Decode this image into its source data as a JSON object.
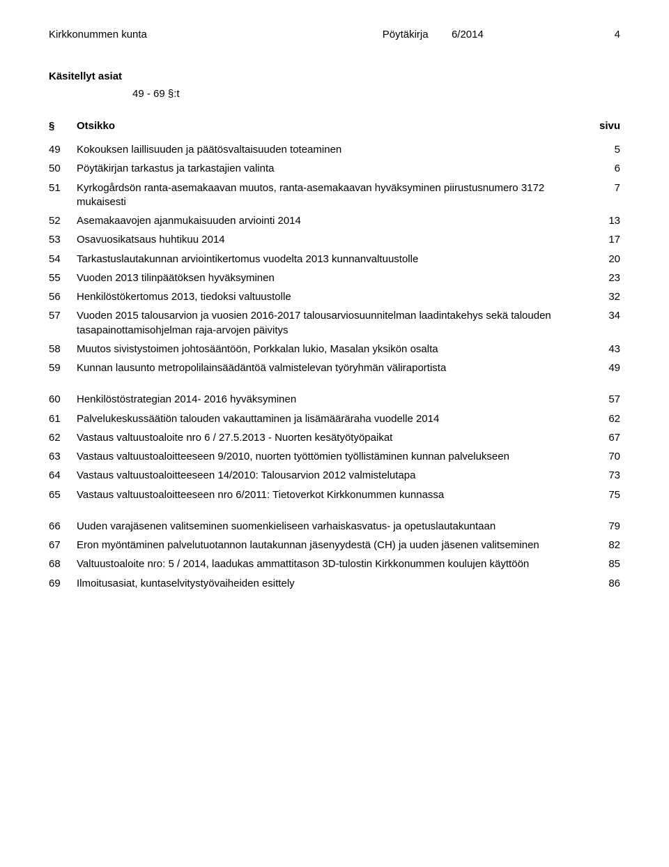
{
  "header": {
    "organization": "Kirkkonummen kunta",
    "document_type": "Pöytäkirja",
    "document_number": "6/2014",
    "page_number": "4"
  },
  "section_title": "Käsitellyt asiat",
  "range": "49 - 69 §:t",
  "columns": {
    "symbol": "§",
    "title": "Otsikko",
    "page": "sivu"
  },
  "groups": [
    {
      "rows": [
        {
          "num": "49",
          "title": "Kokouksen laillisuuden ja päätösvaltaisuuden toteaminen",
          "page": "5"
        },
        {
          "num": "50",
          "title": "Pöytäkirjan tarkastus ja tarkastajien valinta",
          "page": "6"
        },
        {
          "num": "51",
          "title": "Kyrkogårdsön ranta-asemakaavan muutos, ranta-asemakaavan hyväksyminen piirustusnumero 3172 mukaisesti",
          "page": "7"
        },
        {
          "num": "52",
          "title": "Asemakaavojen ajanmukaisuuden arviointi 2014",
          "page": "13"
        },
        {
          "num": "53",
          "title": "Osavuosikatsaus huhtikuu 2014",
          "page": "17"
        },
        {
          "num": "54",
          "title": "Tarkastuslautakunnan arviointikertomus vuodelta 2013 kunnanvaltuustolle",
          "page": "20"
        },
        {
          "num": "55",
          "title": "Vuoden 2013 tilinpäätöksen hyväksyminen",
          "page": "23"
        },
        {
          "num": "56",
          "title": "Henkilöstökertomus 2013, tiedoksi valtuustolle",
          "page": "32"
        },
        {
          "num": "57",
          "title": "Vuoden 2015 talousarvion ja vuosien 2016-2017 talousarviosuunnitelman laadintakehys sekä talouden tasapainottamisohjelman raja-arvojen päivitys",
          "page": "34"
        },
        {
          "num": "58",
          "title": "Muutos sivistystoimen johtosääntöön, Porkkalan lukio, Masalan yksikön osalta",
          "page": "43"
        },
        {
          "num": "59",
          "title": "Kunnan lausunto metropolilainsäädäntöä valmistelevan työryhmän väliraportista",
          "page": "49"
        }
      ]
    },
    {
      "rows": [
        {
          "num": "60",
          "title": "Henkilöstöstrategian 2014- 2016 hyväksyminen",
          "page": "57"
        },
        {
          "num": "61",
          "title": "Palvelukeskussäätiön talouden vakauttaminen ja lisämääräraha vuodelle 2014",
          "page": "62"
        },
        {
          "num": "62",
          "title": "Vastaus valtuustoaloite nro 6 / 27.5.2013 - Nuorten kesätyötyöpaikat",
          "page": "67"
        },
        {
          "num": "63",
          "title": "Vastaus valtuustoaloitteeseen 9/2010, nuorten työttömien työllistäminen kunnan palvelukseen",
          "page": "70"
        },
        {
          "num": "64",
          "title": "Vastaus valtuustoaloitteeseen 14/2010: Talousarvion 2012 valmistelutapa",
          "page": "73"
        },
        {
          "num": "65",
          "title": "Vastaus valtuustoaloitteeseen nro 6/2011: Tietoverkot Kirkkonummen kunnassa",
          "page": "75"
        }
      ]
    },
    {
      "rows": [
        {
          "num": "66",
          "title": "Uuden varajäsenen valitseminen suomenkieliseen varhaiskasvatus- ja opetuslautakuntaan",
          "page": "79"
        },
        {
          "num": "67",
          "title": "Eron myöntäminen palvelutuotannon lautakunnan jäsenyydestä (CH) ja uuden jäsenen valitseminen",
          "page": "82"
        },
        {
          "num": "68",
          "title": "Valtuustoaloite nro: 5 / 2014, laadukas ammattitason 3D-tulostin Kirkkonummen koulujen käyttöön",
          "page": "85"
        },
        {
          "num": "69",
          "title": "Ilmoitusasiat, kuntaselvitystyövaiheiden esittely",
          "page": "86"
        }
      ]
    }
  ]
}
